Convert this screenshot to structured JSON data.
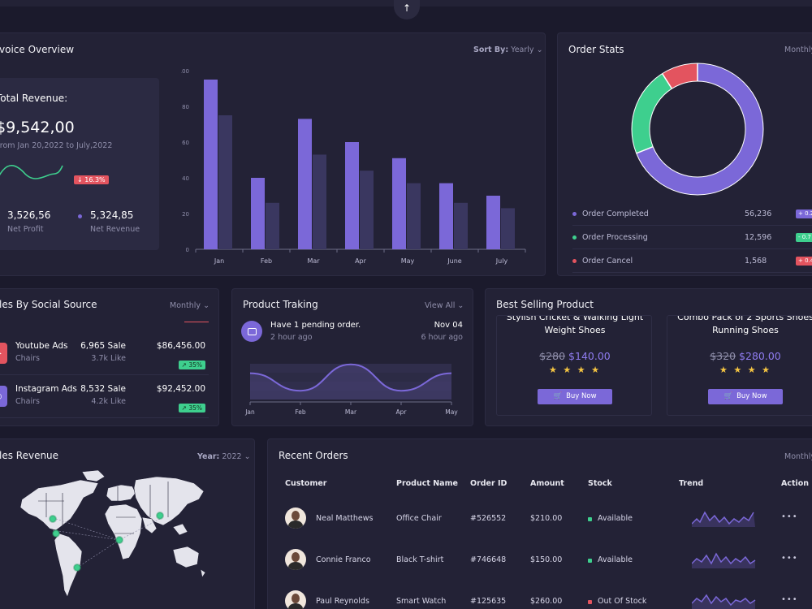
{
  "top": {
    "scroll_top_icon": "arrow-up-icon"
  },
  "invoice": {
    "title": "voice Overview",
    "sort_label": "Sort By:",
    "sort_value": "Yearly",
    "revenue_label": "Total Revenue:",
    "revenue_value": "$9,542,00",
    "range": "From Jan 20,2022 to July,2022",
    "change_badge": "↓ 16.3%",
    "net_profit_value": "3,526,56",
    "net_profit_label": "Net Profit",
    "net_revenue_value": "5,324,85",
    "net_revenue_label": "Net Revenue"
  },
  "chart_data": [
    {
      "type": "bar",
      "title": "",
      "categories": [
        "Jan",
        "Feb",
        "Mar",
        "Apr",
        "May",
        "June",
        "July"
      ],
      "series": [
        {
          "values": [
            95,
            40,
            73,
            60,
            51,
            37,
            30
          ],
          "color": "#7b68d8"
        },
        {
          "values": [
            75,
            26,
            53,
            44,
            37,
            26,
            23
          ],
          "color": "#3a3760"
        }
      ],
      "ylim": [
        0,
        100
      ],
      "yticks": [
        "0",
        "20",
        "40",
        "60",
        "80",
        "100"
      ]
    },
    {
      "type": "pie",
      "title": "",
      "labels": [
        "Order Completed",
        "Order Processing",
        "Order Cancel"
      ],
      "values": [
        56236,
        12596,
        1568
      ],
      "colors": [
        "#7b68d8",
        "#3ecf8e",
        "#e3545f"
      ]
    },
    {
      "type": "area",
      "title": "",
      "categories": [
        "Jan",
        "Feb",
        "Mar",
        "Apr",
        "May"
      ],
      "values": [
        6,
        2,
        8,
        2,
        6
      ]
    }
  ],
  "order_stats": {
    "title": "Order Stats",
    "period": "Monthly",
    "rows": [
      {
        "name": "Order Completed",
        "value": "56,236",
        "pill": "+ 0.2",
        "color": "#7b68d8"
      },
      {
        "name": "Order Processing",
        "value": "12,596",
        "pill": "- 0.7",
        "color": "#3ecf8e"
      },
      {
        "name": "Order Cancel",
        "value": "1,568",
        "pill": "+ 0.4",
        "color": "#e3545f"
      }
    ]
  },
  "social": {
    "title": "les By Social Source",
    "period": "Monthly",
    "rows": [
      {
        "name": "Youtube Ads",
        "sub": "Chairs",
        "sale": "6,965 Sale",
        "like": "3.7k Like",
        "amount": "$86,456.00",
        "pct": "↗ 35%",
        "color": "#e3545f",
        "icon": "youtube-icon"
      },
      {
        "name": "Instagram Ads",
        "sub": "Chairs",
        "sale": "8,532 Sale",
        "like": "4.2k Like",
        "amount": "$92,452.00",
        "pct": "↗ 35%",
        "color": "#7b68d8",
        "icon": "instagram-icon"
      }
    ]
  },
  "tracking": {
    "title": "Product Traking",
    "view_all": "View All",
    "pending": "Have 1 pending order.",
    "pending_time": "2 hour ago",
    "date": "Nov 04",
    "date_time": "6 hour ago"
  },
  "best": {
    "title": "Best Selling Product",
    "products": [
      {
        "name_line1": "Stylish Cricket & Walking Light",
        "name_line2": "Weight Shoes",
        "old_price": "$280",
        "new_price": "$140.00",
        "stars": "★ ★ ★ ★",
        "button": "Buy Now"
      },
      {
        "name_line1": "Combo Pack of 2 Sports Shoes",
        "name_line2": "Running Shoes",
        "old_price": "$320",
        "new_price": "$280.00",
        "stars": "★ ★ ★ ★",
        "button": "Buy Now"
      }
    ]
  },
  "sales_revenue": {
    "title": "les Revenue",
    "year_label": "Year:",
    "year_value": "2022"
  },
  "orders": {
    "title": "Recent Orders",
    "period": "Monthly",
    "headers": [
      "Customer",
      "Product Name",
      "Order ID",
      "Amount",
      "Stock",
      "Trend",
      "Action"
    ],
    "rows": [
      {
        "customer": "Neal Matthews",
        "product": "Office Chair",
        "order_id": "#526552",
        "amount": "$210.00",
        "stock": "Available",
        "stock_color": "#3ecf8e",
        "action": "•••"
      },
      {
        "customer": "Connie Franco",
        "product": "Black T-shirt",
        "order_id": "#746648",
        "amount": "$150.00",
        "stock": "Available",
        "stock_color": "#3ecf8e",
        "action": "•••"
      },
      {
        "customer": "Paul Reynolds",
        "product": "Smart Watch",
        "order_id": "#125635",
        "amount": "$260.00",
        "stock": "Out Of Stock",
        "stock_color": "#e3545f",
        "action": "•••"
      }
    ]
  }
}
